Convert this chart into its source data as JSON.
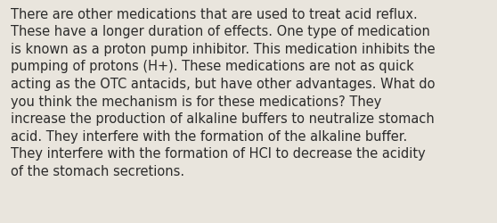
{
  "lines": [
    "There are other medications that are used to treat acid reflux.",
    "These have a longer duration of effects. One type of medication",
    "is known as a proton pump inhibitor. This medication inhibits the",
    "pumping of protons (H+). These medications are not as quick",
    "acting as the OTC antacids, but have other advantages. What do",
    "you think the mechanism is for these medications? They",
    "increase the production of alkaline buffers to neutralize stomach",
    "acid. They interfere with the formation of the alkaline buffer.",
    "They interfere with the formation of HCl to decrease the acidity",
    "of the stomach secretions."
  ],
  "background_color": "#e9e5dd",
  "text_color": "#2b2b2b",
  "font_size": 10.5,
  "fig_width": 5.58,
  "fig_height": 2.51,
  "dpi": 100
}
